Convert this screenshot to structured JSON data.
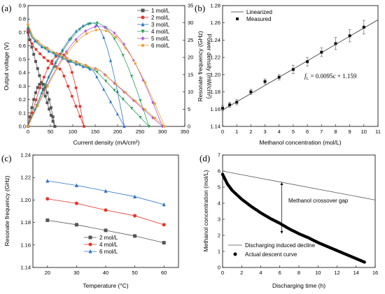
{
  "chart_data": [
    {
      "panel": "(a)",
      "type": "line",
      "xlabel": "Current density (mA/cm²)",
      "ylabel": "Output voltage (V)",
      "y2label": "Power density (mW/cm²)",
      "xlim": [
        0,
        350
      ],
      "ylim": [
        0,
        0.9
      ],
      "y2lim": [
        0,
        35
      ],
      "xticks": [
        0,
        50,
        100,
        150,
        200,
        250,
        300,
        350
      ],
      "yticks": [
        0.0,
        0.1,
        0.2,
        0.3,
        0.4,
        0.5,
        0.6,
        0.7,
        0.8,
        0.9
      ],
      "y2ticks": [
        0,
        5,
        10,
        15,
        20,
        25,
        30,
        35
      ],
      "legend_position": "top-right",
      "series": [
        {
          "name": "1 mol/L",
          "color": "#555555",
          "marker": "square",
          "vmax": 60,
          "v0": 0.7,
          "pmax": 12.5,
          "ipeak": 30
        },
        {
          "name": "2 mol/L",
          "color": "#e8332a",
          "marker": "circle",
          "vmax": 125,
          "v0": 0.72,
          "pmax": 21,
          "ipeak": 75
        },
        {
          "name": "3 mol/L",
          "color": "#2f72c4",
          "marker": "triangle-up",
          "vmax": 215,
          "v0": 0.74,
          "pmax": 30,
          "ipeak": 145
        },
        {
          "name": "4 mol/L",
          "color": "#2ca05a",
          "marker": "triangle-down",
          "vmax": 270,
          "v0": 0.75,
          "pmax": 30,
          "ipeak": 150
        },
        {
          "name": "5 mol/L",
          "color": "#b05cd6",
          "marker": "diamond",
          "vmax": 300,
          "v0": 0.76,
          "pmax": 29,
          "ipeak": 160
        },
        {
          "name": "6 mol/L",
          "color": "#f0a030",
          "marker": "pentagon",
          "vmax": 305,
          "v0": 0.76,
          "pmax": 28,
          "ipeak": 160
        }
      ]
    },
    {
      "panel": "(b)",
      "type": "scatter",
      "xlabel": "Methanol concentration (mol/L)",
      "ylabel": "Resonate frequency (GHz)",
      "xlim": [
        0,
        11
      ],
      "ylim": [
        1.14,
        1.28
      ],
      "xticks": [
        0,
        1,
        2,
        3,
        4,
        5,
        6,
        7,
        8,
        9,
        10,
        11
      ],
      "yticks": [
        1.14,
        1.16,
        1.18,
        1.2,
        1.22,
        1.24,
        1.26,
        1.28
      ],
      "legend_position": "top-left",
      "legend": [
        "Linearized",
        "Measured"
      ],
      "equation_prefix": "f",
      "equation_sub": "L",
      "equation_rest": " = 0.0095c + 1.159",
      "fit": {
        "slope": 0.0095,
        "intercept": 1.159
      },
      "x": [
        0,
        0.5,
        1,
        2,
        3,
        4,
        5,
        6,
        7,
        8,
        9,
        10
      ],
      "y": [
        1.161,
        1.165,
        1.168,
        1.18,
        1.192,
        1.197,
        1.206,
        1.215,
        1.226,
        1.236,
        1.245,
        1.255
      ],
      "err": [
        0.003,
        0.003,
        0.003,
        0.003,
        0.003,
        0.003,
        0.005,
        0.005,
        0.005,
        0.007,
        0.007,
        0.008
      ]
    },
    {
      "panel": "(c)",
      "type": "line",
      "xlabel": "Temperature (°C)",
      "ylabel": "Resonate frequency (GHz)",
      "xlim": [
        15,
        65
      ],
      "ylim": [
        1.14,
        1.24
      ],
      "xticks": [
        20,
        30,
        40,
        50,
        60
      ],
      "yticks": [
        1.14,
        1.16,
        1.18,
        1.2,
        1.22,
        1.24
      ],
      "legend_position": "bottom-left",
      "x": [
        20,
        30,
        40,
        50,
        60
      ],
      "series": [
        {
          "name": "2 mol/L",
          "color": "#555555",
          "marker": "square",
          "values": [
            1.182,
            1.178,
            1.173,
            1.168,
            1.162
          ]
        },
        {
          "name": "4 mol/L",
          "color": "#e8332a",
          "marker": "circle",
          "values": [
            1.201,
            1.197,
            1.191,
            1.186,
            1.178
          ]
        },
        {
          "name": "6 mol/L",
          "color": "#2f72c4",
          "marker": "triangle-up",
          "values": [
            1.217,
            1.213,
            1.208,
            1.203,
            1.196
          ]
        }
      ]
    },
    {
      "panel": "(d)",
      "type": "line",
      "xlabel": "Discharging time (h)",
      "ylabel": "Methanol concentration (mol/L)",
      "xlim": [
        0,
        16
      ],
      "ylim": [
        0,
        7
      ],
      "xticks": [
        0,
        2,
        4,
        6,
        8,
        10,
        12,
        14,
        16
      ],
      "yticks": [
        0,
        1,
        2,
        3,
        4,
        5,
        6,
        7
      ],
      "legend_position": "bottom-left",
      "annotation": "Methanol crossover gap",
      "annotation_x": 6.2,
      "series": [
        {
          "name": "Discharging induced decline",
          "type": "line",
          "x": [
            0,
            16
          ],
          "y": [
            6.0,
            4.2
          ]
        },
        {
          "name": "Actual descent curve",
          "type": "dots",
          "x": [
            0,
            0.5,
            1,
            2,
            3,
            4,
            5,
            6,
            7,
            8,
            9,
            10,
            11,
            12,
            13,
            14,
            15
          ],
          "y": [
            5.8,
            5.2,
            4.8,
            4.25,
            3.8,
            3.4,
            3.05,
            2.75,
            2.4,
            2.1,
            1.85,
            1.55,
            1.3,
            1.05,
            0.8,
            0.55,
            0.3
          ]
        }
      ]
    }
  ]
}
